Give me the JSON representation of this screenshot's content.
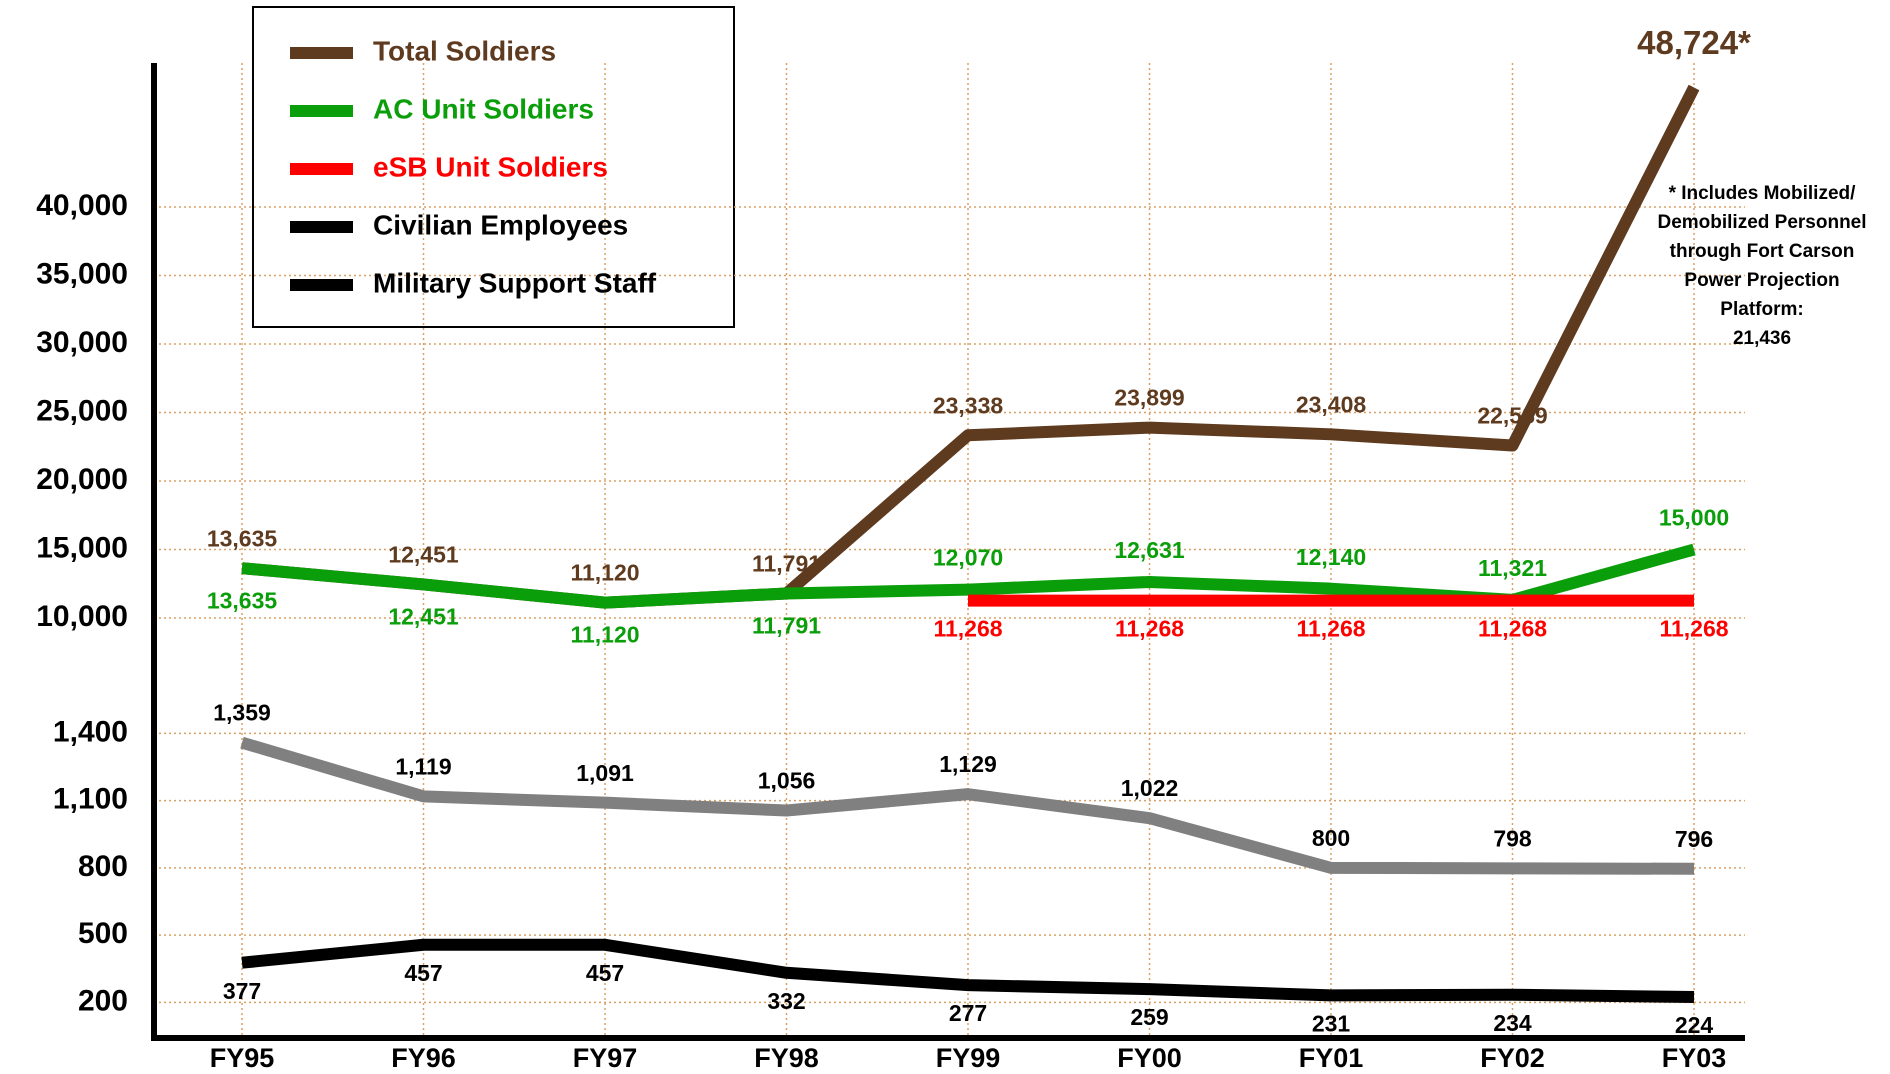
{
  "chart_data": {
    "type": "line",
    "grid": true,
    "legend_corner": "top-left",
    "categories": [
      "FY95",
      "FY96",
      "FY97",
      "FY98",
      "FY99",
      "FY00",
      "FY01",
      "FY02",
      "FY03"
    ],
    "panels": [
      {
        "ylim": [
          10000,
          50000
        ],
        "yticks": [
          {
            "value": 10000,
            "label": "10,000"
          },
          {
            "value": 15000,
            "label": "15,000"
          },
          {
            "value": 20000,
            "label": "20,000"
          },
          {
            "value": 25000,
            "label": "25,000"
          },
          {
            "value": 30000,
            "label": "30,000"
          },
          {
            "value": 35000,
            "label": "35,000"
          },
          {
            "value": 40000,
            "label": "40,000"
          }
        ],
        "series": [
          {
            "name": "Total Soldiers",
            "color": "#5e3a1f",
            "values": [
              13635,
              12451,
              11120,
              11791,
              23338,
              23899,
              23408,
              22589,
              48724
            ],
            "value_labels": [
              "13,635",
              "12,451",
              "11,120",
              "11,791",
              "23,338",
              "23,899",
              "23,408",
              "22,589",
              "48,724*"
            ]
          },
          {
            "name": "AC Unit Soldiers",
            "color": "#0a9e0a",
            "values": [
              13635,
              12451,
              11120,
              11791,
              12070,
              12631,
              12140,
              11321,
              15000
            ],
            "value_labels": [
              "13,635",
              "12,451",
              "11,120",
              "11,791",
              "12,070",
              "12,631",
              "12,140",
              "11,321",
              "15,000"
            ]
          },
          {
            "name": "eSB Unit Soldiers",
            "color": "#ff0000",
            "values": [
              null,
              null,
              null,
              null,
              11268,
              11268,
              11268,
              11268,
              11268
            ],
            "value_labels": [
              null,
              null,
              null,
              null,
              "11,268",
              "11,268",
              "11,268",
              "11,268",
              "11,268"
            ]
          }
        ]
      },
      {
        "ylim": [
          50,
          1500
        ],
        "yticks": [
          200,
          500,
          800,
          {
            "value": 1100,
            "label": "1,100"
          },
          {
            "value": 1400,
            "label": "1,400"
          }
        ],
        "series": [
          {
            "name": "Civilian Employees",
            "color": "#808080",
            "values": [
              1359,
              1119,
              1091,
              1056,
              1129,
              1022,
              800,
              798,
              796
            ],
            "value_labels": [
              "1,359",
              "1,119",
              "1,091",
              "1,056",
              "1,129",
              "1,022",
              "800",
              "798",
              "796"
            ]
          },
          {
            "name": "Military Support Staff",
            "color": "#000000",
            "values": [
              377,
              457,
              457,
              332,
              277,
              259,
              231,
              234,
              224
            ],
            "value_labels": [
              "377",
              "457",
              "457",
              "332",
              "277",
              "259",
              "231",
              "234",
              "224"
            ]
          }
        ]
      }
    ],
    "annotation": [
      "* Includes Mobilized/",
      "Demobilized Personnel",
      "through Fort Carson",
      "Power Projection",
      "Platform:",
      "21,436"
    ]
  }
}
